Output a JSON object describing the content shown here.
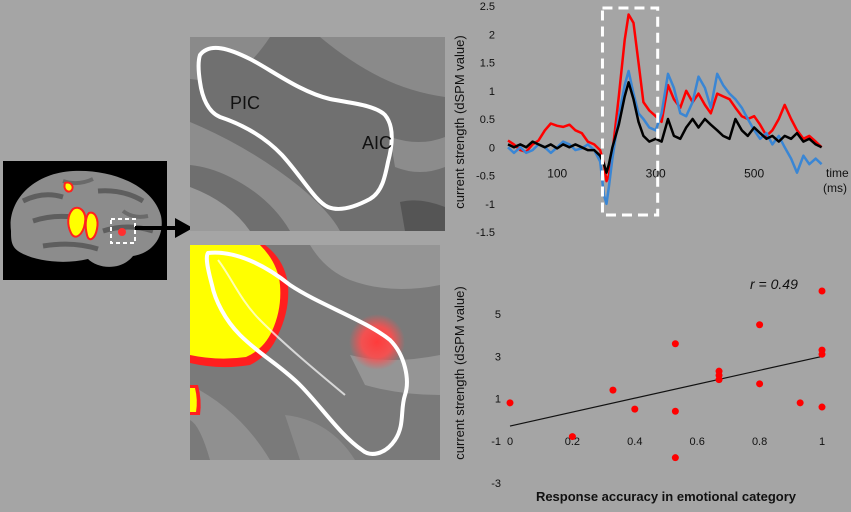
{
  "brain_panel": {
    "labels": {
      "posterior": "PIC",
      "anterior": "AIC"
    }
  },
  "chart_data": [
    {
      "type": "line",
      "title": "",
      "xlabel": "time (ms)",
      "xlabel_lines": [
        "time",
        "(ms)"
      ],
      "ylabel": "current strength (dSPM value)",
      "xlim": [
        0,
        650
      ],
      "ylim": [
        -1.5,
        2.5
      ],
      "xticks": [
        100,
        300,
        500
      ],
      "yticks": [
        -1.5,
        -1,
        -0.5,
        0,
        0.5,
        1,
        1.5,
        2,
        2.5
      ],
      "ytick_labels": [
        "-1.5",
        "-1",
        "-0.5",
        "0",
        "0.5",
        "1",
        "1.5",
        "2",
        "2.5"
      ],
      "highlight_window": [
        200,
        300
      ],
      "grid": false,
      "series": [
        {
          "color": "#ff0000",
          "points": [
            [
              0,
              0.12
            ],
            [
              12,
              0.05
            ],
            [
              25,
              -0.05
            ],
            [
              37,
              -0.08
            ],
            [
              50,
              0.05
            ],
            [
              62,
              0.12
            ],
            [
              75,
              0.3
            ],
            [
              87,
              0.42
            ],
            [
              100,
              0.38
            ],
            [
              112,
              0.36
            ],
            [
              125,
              0.4
            ],
            [
              137,
              0.3
            ],
            [
              150,
              0.25
            ],
            [
              162,
              0.1
            ],
            [
              175,
              0.05
            ],
            [
              187,
              -0.05
            ],
            [
              195,
              -0.3
            ],
            [
              200,
              -0.6
            ],
            [
              205,
              -0.5
            ],
            [
              212,
              -0.1
            ],
            [
              225,
              0.9
            ],
            [
              237,
              1.9
            ],
            [
              245,
              2.35
            ],
            [
              255,
              2.2
            ],
            [
              265,
              1.5
            ],
            [
              275,
              0.8
            ],
            [
              287,
              0.65
            ],
            [
              300,
              0.55
            ],
            [
              312,
              0.45
            ],
            [
              325,
              1.1
            ],
            [
              337,
              0.85
            ],
            [
              350,
              0.7
            ],
            [
              362,
              1.0
            ],
            [
              375,
              0.8
            ],
            [
              387,
              0.95
            ],
            [
              400,
              0.75
            ],
            [
              412,
              0.6
            ],
            [
              425,
              0.95
            ],
            [
              437,
              0.9
            ],
            [
              450,
              0.85
            ],
            [
              462,
              0.7
            ],
            [
              475,
              0.55
            ],
            [
              487,
              0.5
            ],
            [
              500,
              0.55
            ],
            [
              512,
              0.4
            ],
            [
              525,
              0.2
            ],
            [
              537,
              0.3
            ],
            [
              550,
              0.5
            ],
            [
              562,
              0.75
            ],
            [
              575,
              0.5
            ],
            [
              587,
              0.3
            ],
            [
              600,
              0.15
            ],
            [
              612,
              0.2
            ],
            [
              625,
              0.1
            ],
            [
              637,
              0.0
            ]
          ]
        },
        {
          "color": "#3a86d4",
          "points": [
            [
              0,
              0.0
            ],
            [
              12,
              -0.1
            ],
            [
              25,
              0.0
            ],
            [
              37,
              -0.1
            ],
            [
              50,
              -0.05
            ],
            [
              62,
              0.05
            ],
            [
              75,
              0.0
            ],
            [
              87,
              -0.1
            ],
            [
              100,
              0.0
            ],
            [
              112,
              0.1
            ],
            [
              125,
              0.05
            ],
            [
              137,
              -0.05
            ],
            [
              150,
              -0.02
            ],
            [
              162,
              0.05
            ],
            [
              175,
              -0.05
            ],
            [
              187,
              -0.25
            ],
            [
              195,
              -0.85
            ],
            [
              200,
              -1.0
            ],
            [
              205,
              -0.7
            ],
            [
              212,
              -0.2
            ],
            [
              225,
              0.55
            ],
            [
              237,
              1.1
            ],
            [
              245,
              1.35
            ],
            [
              255,
              0.95
            ],
            [
              265,
              0.6
            ],
            [
              275,
              0.5
            ],
            [
              287,
              0.35
            ],
            [
              300,
              0.3
            ],
            [
              312,
              0.6
            ],
            [
              325,
              1.3
            ],
            [
              337,
              1.05
            ],
            [
              350,
              0.6
            ],
            [
              362,
              0.55
            ],
            [
              375,
              0.8
            ],
            [
              387,
              1.25
            ],
            [
              400,
              1.05
            ],
            [
              412,
              0.7
            ],
            [
              425,
              1.3
            ],
            [
              437,
              1.1
            ],
            [
              450,
              0.95
            ],
            [
              462,
              0.85
            ],
            [
              475,
              0.7
            ],
            [
              487,
              0.5
            ],
            [
              500,
              0.3
            ],
            [
              512,
              0.15
            ],
            [
              525,
              0.25
            ],
            [
              537,
              0.05
            ],
            [
              550,
              0.2
            ],
            [
              562,
              0.0
            ],
            [
              575,
              -0.2
            ],
            [
              587,
              -0.45
            ],
            [
              600,
              -0.15
            ],
            [
              612,
              -0.3
            ],
            [
              625,
              -0.2
            ],
            [
              637,
              -0.3
            ]
          ]
        },
        {
          "color": "#000000",
          "points": [
            [
              0,
              0.05
            ],
            [
              12,
              0.0
            ],
            [
              25,
              0.05
            ],
            [
              37,
              0.0
            ],
            [
              50,
              0.1
            ],
            [
              62,
              0.05
            ],
            [
              75,
              0.0
            ],
            [
              87,
              0.05
            ],
            [
              100,
              -0.02
            ],
            [
              112,
              0.05
            ],
            [
              125,
              0.0
            ],
            [
              137,
              0.05
            ],
            [
              150,
              0.0
            ],
            [
              162,
              -0.05
            ],
            [
              175,
              -0.05
            ],
            [
              187,
              -0.15
            ],
            [
              195,
              -0.3
            ],
            [
              200,
              -0.45
            ],
            [
              205,
              -0.3
            ],
            [
              212,
              0.0
            ],
            [
              225,
              0.4
            ],
            [
              237,
              0.9
            ],
            [
              245,
              1.15
            ],
            [
              255,
              0.85
            ],
            [
              265,
              0.45
            ],
            [
              275,
              0.2
            ],
            [
              287,
              0.1
            ],
            [
              300,
              0.15
            ],
            [
              312,
              0.1
            ],
            [
              325,
              0.5
            ],
            [
              337,
              0.2
            ],
            [
              350,
              0.15
            ],
            [
              362,
              0.35
            ],
            [
              375,
              0.5
            ],
            [
              387,
              0.35
            ],
            [
              400,
              0.5
            ],
            [
              412,
              0.4
            ],
            [
              425,
              0.3
            ],
            [
              437,
              0.2
            ],
            [
              450,
              0.15
            ],
            [
              462,
              0.5
            ],
            [
              475,
              0.3
            ],
            [
              487,
              0.2
            ],
            [
              500,
              0.35
            ],
            [
              512,
              0.25
            ],
            [
              525,
              0.15
            ],
            [
              537,
              0.2
            ],
            [
              550,
              0.1
            ],
            [
              562,
              0.2
            ],
            [
              575,
              0.15
            ],
            [
              587,
              0.25
            ],
            [
              600,
              0.1
            ],
            [
              612,
              0.15
            ],
            [
              625,
              0.05
            ],
            [
              637,
              0.0
            ]
          ]
        }
      ]
    },
    {
      "type": "scatter",
      "title": "",
      "xlabel": "Response accuracy in emotional category",
      "ylabel": "current strength (dSPM value)",
      "xlim": [
        0,
        1
      ],
      "ylim": [
        -3,
        7
      ],
      "xticks": [
        0,
        0.2,
        0.4,
        0.6,
        0.8,
        1
      ],
      "xtick_labels": [
        "0",
        "0.2",
        "0.4",
        "0.6",
        "0.8",
        "1"
      ],
      "yticks": [
        -3,
        -1,
        1,
        3,
        5
      ],
      "ytick_labels": [
        "-3",
        "-1",
        "1",
        "3",
        "5"
      ],
      "annotation": "r = 0.49",
      "point_color": "#ff0000",
      "points": [
        [
          0.0,
          0.8
        ],
        [
          0.2,
          -0.8
        ],
        [
          0.33,
          1.4
        ],
        [
          0.4,
          0.5
        ],
        [
          0.53,
          3.6
        ],
        [
          0.53,
          0.4
        ],
        [
          0.53,
          -1.8
        ],
        [
          0.67,
          2.3
        ],
        [
          0.67,
          2.1
        ],
        [
          0.67,
          1.9
        ],
        [
          0.8,
          4.5
        ],
        [
          0.8,
          1.7
        ],
        [
          0.93,
          0.8
        ],
        [
          1.0,
          6.1
        ],
        [
          1.0,
          3.3
        ],
        [
          1.0,
          3.1
        ],
        [
          1.0,
          0.6
        ]
      ],
      "trendline": [
        [
          0.0,
          -0.3
        ],
        [
          1.0,
          3.0
        ]
      ],
      "grid": false
    }
  ]
}
